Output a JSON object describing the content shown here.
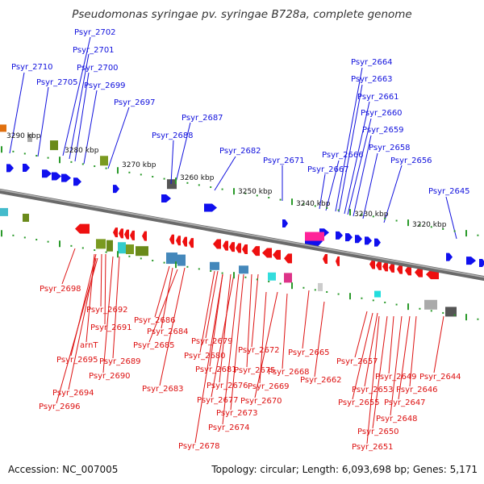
{
  "title": "Pseudomonas syringae pv. syringae B728a, complete genome",
  "footer": {
    "accession": "Accession: NC_007005",
    "topology": "Topology: circular; Length: 6,093,698 bp; Genes: 5,171"
  },
  "colors": {
    "backbone": "#7a7a7a",
    "forward_gene": "#1010ee",
    "reverse_gene": "#ee1010",
    "tick": "#2a9a2a",
    "label_top": "#1111dd",
    "label_bottom": "#dd1111"
  },
  "scale_labels": [
    "3290 kbp",
    "3280 kbp",
    "3270 kbp",
    "3260 kbp",
    "3250 kbp",
    "3240 kbp",
    "3230 kbp",
    "3220 kbp"
  ],
  "top_labels": [
    "Psyr_2702",
    "Psyr_2701",
    "Psyr_2710",
    "Psyr_2700",
    "Psyr_2705",
    "Psyr_2699",
    "Psyr_2697",
    "Psyr_2687",
    "Psyr_2688",
    "Psyr_2682",
    "Psyr_2671",
    "Psyr_2664",
    "Psyr_2663",
    "Psyr_2661",
    "Psyr_2660",
    "Psyr_2659",
    "Psyr_2658",
    "Psyr_2666",
    "Psyr_2656",
    "Psyr_2667",
    "Psyr_2645"
  ],
  "bottom_labels": [
    "Psyr_2698",
    "Psyr_2692",
    "Psyr_2691",
    "Psyr_2686",
    "Psyr_2684",
    "Psyr_2685",
    "Psyr_2679",
    "Psyr_2680",
    "Psyr_2672",
    "Psyr_2665",
    "arnT",
    "Psyr_2695",
    "Psyr_2689",
    "Psyr_2690",
    "Psyr_2681",
    "Psyr_2675",
    "Psyr_2668",
    "Psyr_2657",
    "Psyr_2662",
    "Psyr_2649",
    "Psyr_2644",
    "Psyr_2676",
    "Psyr_2669",
    "Psyr_2653",
    "Psyr_2646",
    "Psyr_2683",
    "Psyr_2694",
    "Psyr_2677",
    "Psyr_2670",
    "Psyr_2655",
    "Psyr_2647",
    "Psyr_2696",
    "Psyr_2673",
    "Psyr_2648",
    "Psyr_2674",
    "Psyr_2650",
    "Psyr_2678",
    "Psyr_2651"
  ]
}
